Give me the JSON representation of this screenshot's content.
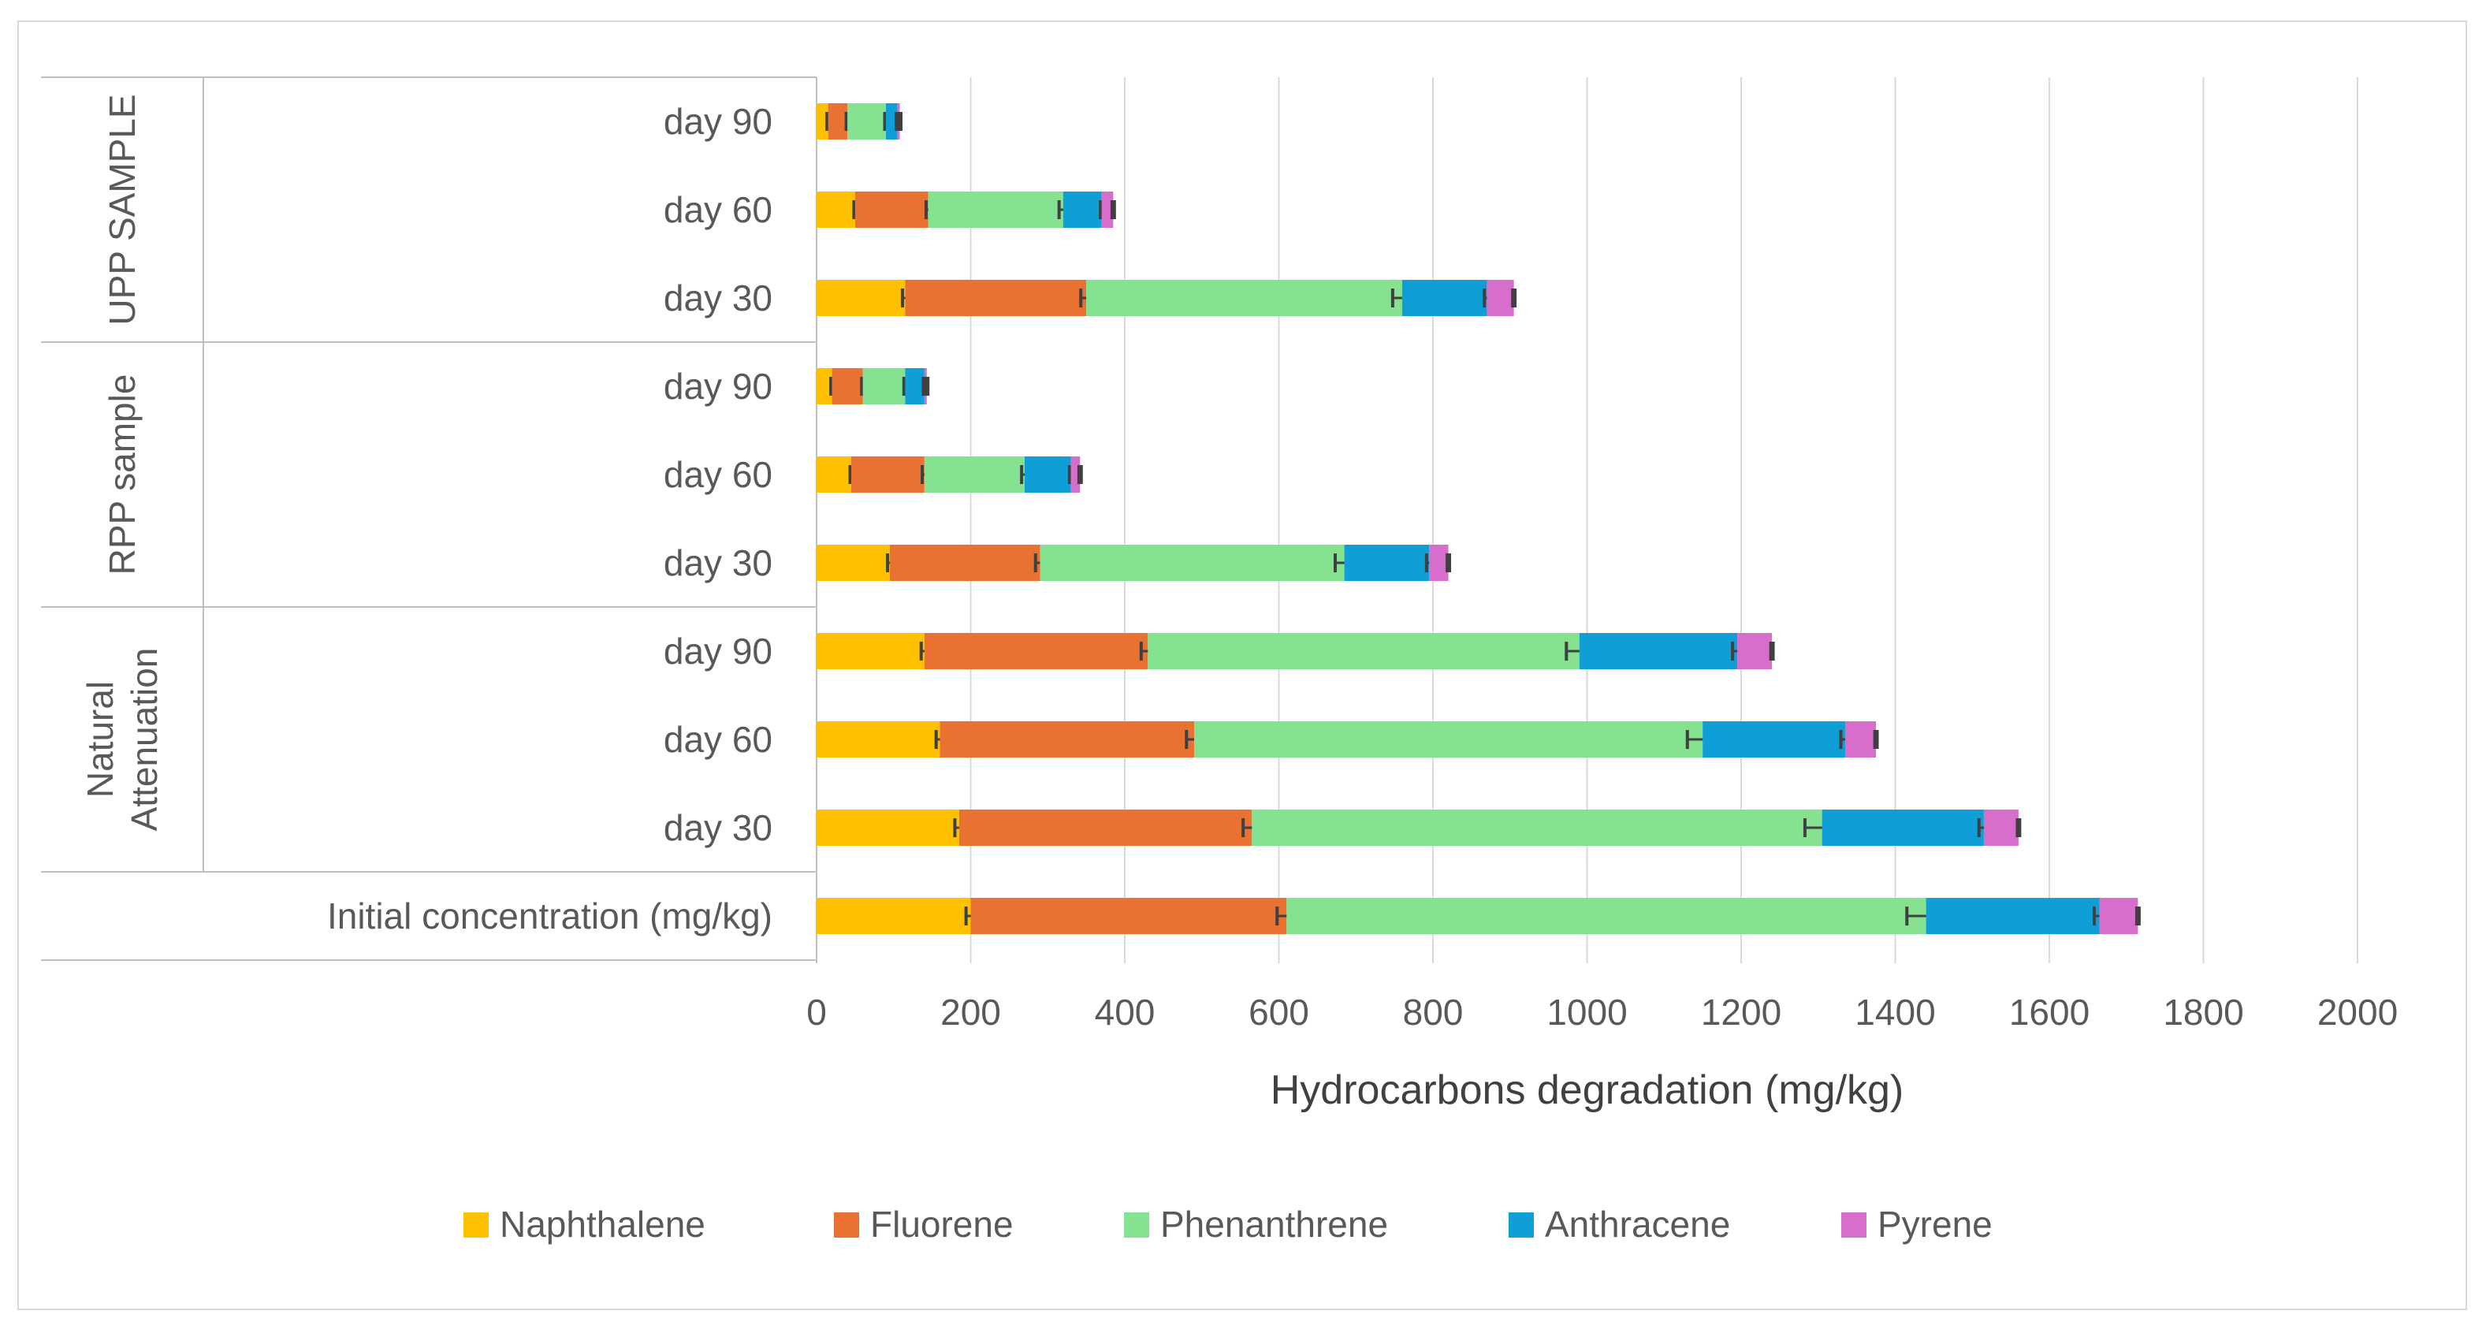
{
  "chart_data": {
    "type": "bar",
    "orientation": "horizontal",
    "stacked": true,
    "title": "",
    "xlabel": "Hydrocarbons degradation (mg/kg)",
    "ylabel": "",
    "xlim": [
      0,
      2000
    ],
    "x_ticks": [
      "0",
      "200",
      "400",
      "600",
      "800",
      "1000",
      "1200",
      "1400",
      "1600",
      "1800",
      "2000"
    ],
    "grid": "vertical",
    "legend_position": "bottom",
    "groups": [
      {
        "name": "UPP SAMPLE",
        "categories": [
          "day 90",
          "day 60",
          "day 30"
        ]
      },
      {
        "name": "RPP sample",
        "categories": [
          "day 90",
          "day 60",
          "day 30"
        ]
      },
      {
        "name": "Natural Attenuation",
        "categories": [
          "day 90",
          "day 60",
          "day 30"
        ]
      },
      {
        "name": "",
        "categories": [
          "Initial concentration (mg/kg)"
        ]
      }
    ],
    "series": [
      {
        "name": "Naphthalene",
        "color": "#FFC000",
        "values": [
          15,
          50,
          115,
          20,
          45,
          95,
          140,
          160,
          185,
          200
        ]
      },
      {
        "name": "Fluorene",
        "color": "#E97132",
        "values": [
          25,
          95,
          235,
          40,
          95,
          195,
          290,
          330,
          380,
          410
        ]
      },
      {
        "name": "Phenanthrene",
        "color": "#84E291",
        "values": [
          50,
          175,
          410,
          55,
          130,
          395,
          560,
          660,
          740,
          830
        ]
      },
      {
        "name": "Anthracene",
        "color": "#0F9ED5",
        "values": [
          15,
          50,
          110,
          25,
          60,
          110,
          205,
          185,
          210,
          225
        ]
      },
      {
        "name": "Pyrene",
        "color": "#D86ECC",
        "values": [
          3,
          15,
          35,
          3,
          12,
          25,
          45,
          40,
          45,
          50
        ]
      }
    ],
    "error_bars": true
  }
}
